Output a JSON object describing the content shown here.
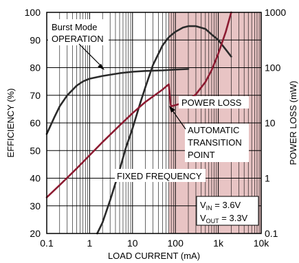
{
  "chart_data": {
    "type": "line",
    "xlabel": "LOAD CURRENT (mA)",
    "ylabel_left": "EFFICIENCY (%)",
    "ylabel_right": "POWER LOSS (mW)",
    "x_scale": "log",
    "x_range": [
      0.1,
      10000
    ],
    "y_left_range": [
      20,
      100
    ],
    "y_right_scale": "log",
    "y_right_range": [
      0.1,
      1000
    ],
    "grid": true,
    "x_ticks": [
      "0.1",
      "1",
      "10",
      "100",
      "1k",
      "10k"
    ],
    "y_left_ticks": [
      "20",
      "30",
      "40",
      "50",
      "60",
      "70",
      "80",
      "90",
      "100"
    ],
    "y_right_ticks": [
      "0.1",
      "1",
      "10",
      "100",
      "1000"
    ],
    "shaded_region_x": [
      70,
      10000
    ],
    "colors": {
      "efficiency": "#2a2a2a",
      "power_loss": "#8c1b31",
      "shade": "#e8c4c4",
      "grid": "#000000"
    },
    "series": [
      {
        "name": "Burst Mode OPERATION",
        "axis": "left",
        "points": [
          [
            0.1,
            56
          ],
          [
            0.15,
            62
          ],
          [
            0.2,
            66
          ],
          [
            0.3,
            70
          ],
          [
            0.5,
            73.5
          ],
          [
            0.7,
            75
          ],
          [
            1,
            76
          ],
          [
            2,
            77
          ],
          [
            5,
            78
          ],
          [
            10,
            78.5
          ],
          [
            20,
            78.8
          ],
          [
            50,
            79
          ],
          [
            100,
            79.3
          ],
          [
            200,
            79.5
          ]
        ]
      },
      {
        "name": "FIXED FREQUENCY",
        "axis": "left",
        "points": [
          [
            1.5,
            20
          ],
          [
            2,
            24
          ],
          [
            3,
            32
          ],
          [
            5,
            43
          ],
          [
            7,
            51
          ],
          [
            10,
            58
          ],
          [
            15,
            67
          ],
          [
            20,
            73
          ],
          [
            30,
            81
          ],
          [
            50,
            88
          ],
          [
            70,
            91
          ],
          [
            100,
            93
          ],
          [
            150,
            94.5
          ],
          [
            200,
            95
          ],
          [
            300,
            95
          ],
          [
            500,
            94
          ],
          [
            700,
            92
          ],
          [
            1000,
            90
          ],
          [
            1500,
            86.5
          ],
          [
            2000,
            84
          ]
        ]
      },
      {
        "name": "POWER LOSS",
        "axis": "right",
        "points": [
          [
            0.1,
            0.45
          ],
          [
            0.2,
            0.75
          ],
          [
            0.5,
            1.5
          ],
          [
            1,
            2.6
          ],
          [
            2,
            4.5
          ],
          [
            5,
            9
          ],
          [
            10,
            15
          ],
          [
            20,
            24
          ],
          [
            50,
            40
          ],
          [
            70,
            50
          ],
          [
            77,
            22
          ],
          [
            80,
            20
          ],
          [
            100,
            21
          ],
          [
            150,
            23
          ],
          [
            200,
            26
          ],
          [
            300,
            33
          ],
          [
            500,
            55
          ],
          [
            700,
            90
          ],
          [
            1000,
            180
          ],
          [
            1500,
            450
          ],
          [
            2000,
            1000
          ]
        ]
      }
    ],
    "annotations": {
      "burst_line1": "Burst Mode",
      "burst_line2": "OPERATION",
      "power_loss": "POWER LOSS",
      "auto_line1": "AUTOMATIC",
      "auto_line2": "TRANSITION",
      "auto_line3": "POINT",
      "fixed": "FIXED FREQUENCY",
      "vin_main": "V",
      "vin_sub": "IN",
      "vin_val": " = 3.6V",
      "vout_main": "V",
      "vout_sub": "OUT",
      "vout_val": " = 3.3V"
    }
  }
}
